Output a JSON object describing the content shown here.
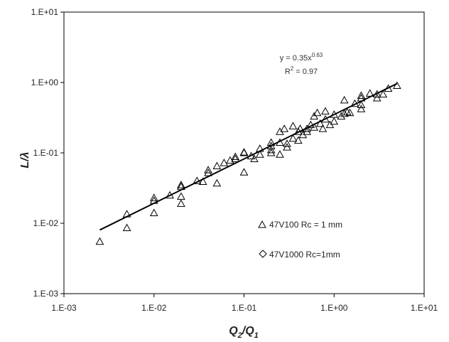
{
  "chart_data": {
    "type": "scatter",
    "xscale": "log",
    "yscale": "log",
    "xlim": [
      0.001,
      10
    ],
    "ylim": [
      0.001,
      10
    ],
    "x_ticks": [
      "1.E-03",
      "1.E-02",
      "1.E-01",
      "1.E+00",
      "1.E+01"
    ],
    "y_ticks": [
      "1.E-03",
      "1.E-02",
      "1.E-01",
      "1.E+00",
      "1.E+01"
    ],
    "xlabel_main": "Q",
    "xlabel_sub1": "2",
    "xlabel_slash": "/Q",
    "xlabel_sub2": "1",
    "ylabel": "L/λ",
    "grid": false,
    "legend_position": "lower-right inside plot",
    "series": [
      {
        "name": "47V100 Rc = 1 mm",
        "marker": "triangle",
        "color": "#000000",
        "points": [
          [
            0.0025,
            0.0055
          ],
          [
            0.005,
            0.0086
          ],
          [
            0.005,
            0.0135
          ],
          [
            0.01,
            0.014
          ],
          [
            0.01,
            0.021
          ],
          [
            0.01,
            0.023
          ],
          [
            0.015,
            0.025
          ],
          [
            0.02,
            0.019
          ],
          [
            0.02,
            0.024
          ],
          [
            0.02,
            0.033
          ],
          [
            0.02,
            0.035
          ],
          [
            0.03,
            0.04
          ],
          [
            0.035,
            0.039
          ],
          [
            0.04,
            0.052
          ],
          [
            0.04,
            0.057
          ],
          [
            0.05,
            0.037
          ],
          [
            0.05,
            0.065
          ],
          [
            0.06,
            0.072
          ],
          [
            0.07,
            0.078
          ],
          [
            0.08,
            0.082
          ],
          [
            0.08,
            0.088
          ],
          [
            0.1,
            0.053
          ],
          [
            0.1,
            0.1
          ],
          [
            0.1,
            0.102
          ],
          [
            0.12,
            0.09
          ],
          [
            0.13,
            0.082
          ],
          [
            0.15,
            0.095
          ],
          [
            0.15,
            0.115
          ],
          [
            0.2,
            0.1
          ],
          [
            0.2,
            0.11
          ],
          [
            0.2,
            0.125
          ],
          [
            0.2,
            0.14
          ],
          [
            0.25,
            0.095
          ],
          [
            0.25,
            0.14
          ],
          [
            0.25,
            0.2
          ],
          [
            0.28,
            0.22
          ],
          [
            0.3,
            0.12
          ],
          [
            0.3,
            0.135
          ],
          [
            0.35,
            0.16
          ],
          [
            0.35,
            0.24
          ],
          [
            0.4,
            0.15
          ],
          [
            0.4,
            0.2
          ],
          [
            0.42,
            0.22
          ],
          [
            0.45,
            0.18
          ],
          [
            0.5,
            0.2
          ],
          [
            0.5,
            0.22
          ],
          [
            0.55,
            0.25
          ],
          [
            0.6,
            0.23
          ],
          [
            0.6,
            0.33
          ],
          [
            0.65,
            0.37
          ],
          [
            0.7,
            0.26
          ],
          [
            0.75,
            0.22
          ],
          [
            0.8,
            0.3
          ],
          [
            0.8,
            0.39
          ],
          [
            0.9,
            0.25
          ],
          [
            1.0,
            0.28
          ],
          [
            1.0,
            0.35
          ],
          [
            1.2,
            0.33
          ],
          [
            1.3,
            0.36
          ],
          [
            1.4,
            0.38
          ],
          [
            1.3,
            0.56
          ],
          [
            1.5,
            0.37
          ],
          [
            1.7,
            0.5
          ],
          [
            2.0,
            0.42
          ],
          [
            2.0,
            0.48
          ],
          [
            2.0,
            0.6
          ],
          [
            2.0,
            0.65
          ],
          [
            2.5,
            0.7
          ],
          [
            3.0,
            0.6
          ],
          [
            3.0,
            0.68
          ],
          [
            3.5,
            0.68
          ],
          [
            4.0,
            0.82
          ],
          [
            5.0,
            0.9
          ]
        ]
      },
      {
        "name": "47V1000 Rc=1mm",
        "marker": "diamond",
        "color": "#000000",
        "points": []
      }
    ],
    "trendline": {
      "equation_prefix": "y = 0.35x",
      "equation_exp": "0.63",
      "r2_prefix": "R",
      "r2_exp": "2",
      "r2_suffix": " = 0.97",
      "coef": 0.35,
      "exponent": 0.63,
      "x_range": [
        0.0025,
        5.0
      ]
    }
  }
}
